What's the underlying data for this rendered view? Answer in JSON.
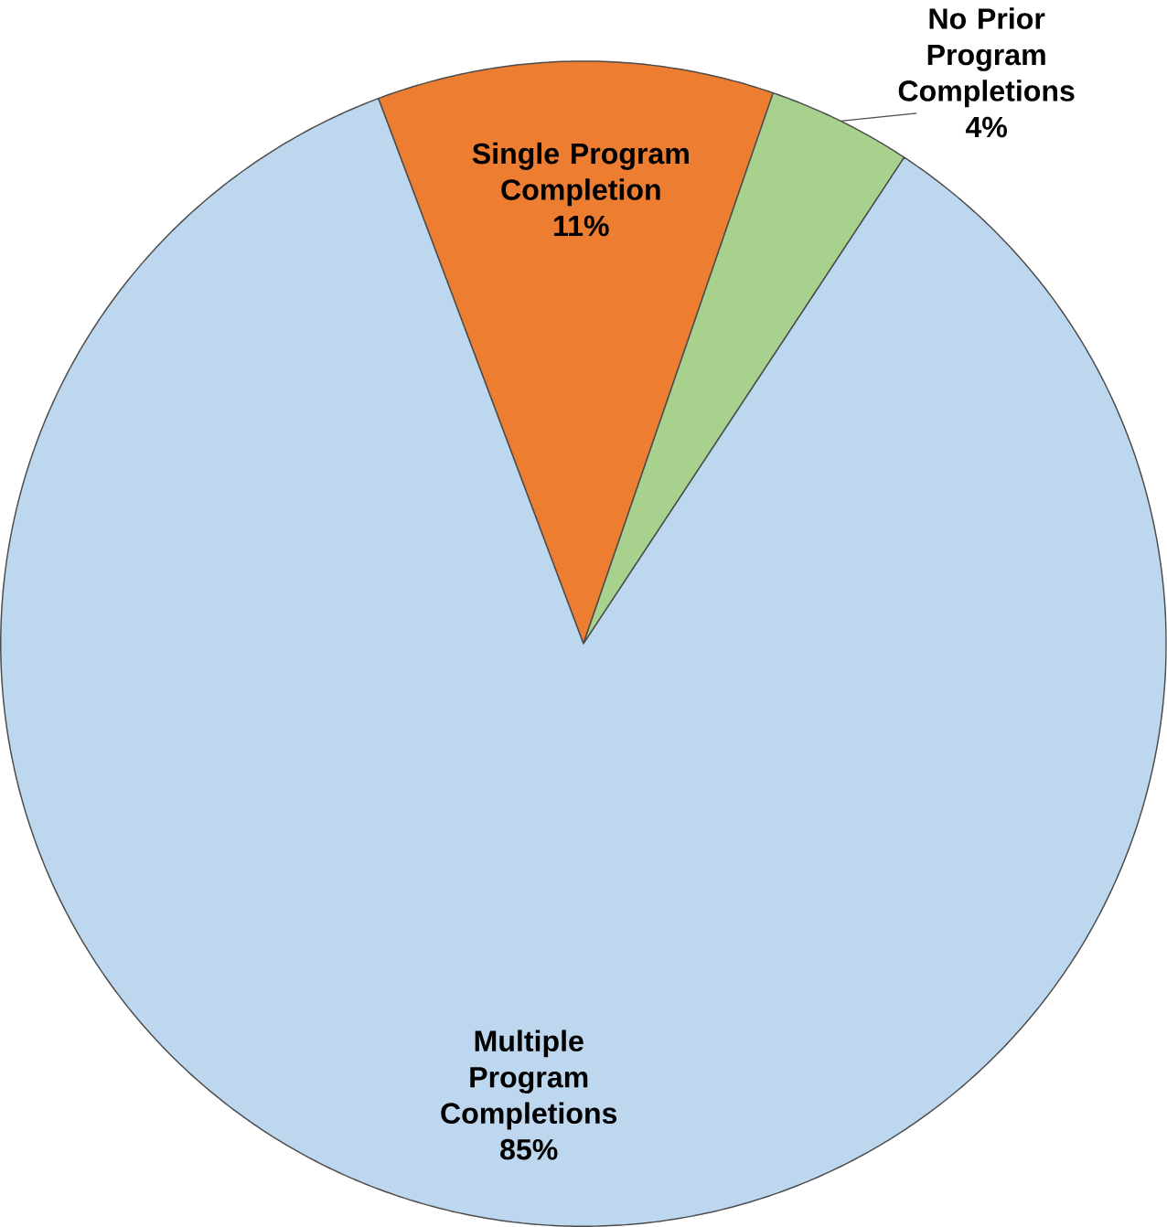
{
  "chart_data": {
    "type": "pie",
    "categories": [
      "Single Program Completion",
      "No Prior Program Completions",
      "Multiple Program Completions"
    ],
    "values": [
      11,
      4,
      85
    ],
    "colors": [
      "#ed7d31",
      "#a9d18e",
      "#bdd7ee"
    ],
    "value_labels": [
      "11%",
      "4%",
      "85%"
    ]
  }
}
